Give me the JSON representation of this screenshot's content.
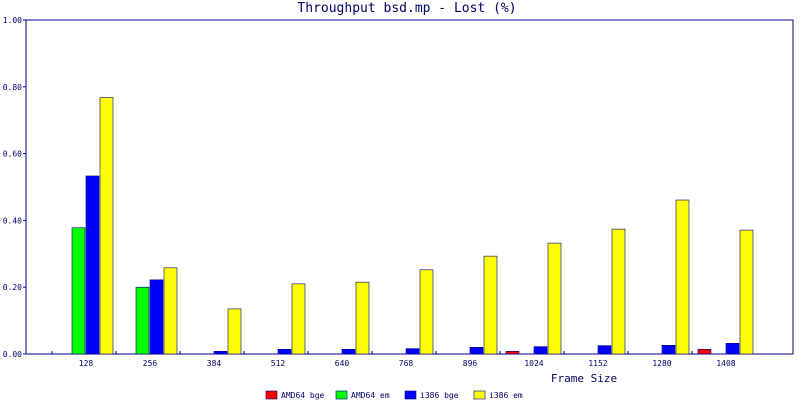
{
  "chart_data": {
    "type": "bar",
    "title": "Throughput bsd.mp - Lost (%)",
    "xlabel": "Frame Size",
    "ylabel": "",
    "ylim": [
      0,
      1
    ],
    "yticks": [
      "0.00",
      "0.20",
      "0.40",
      "0.60",
      "0.80",
      "1.00"
    ],
    "categories": [
      "128",
      "256",
      "384",
      "512",
      "640",
      "768",
      "896",
      "1024",
      "1152",
      "1280",
      "1408"
    ],
    "series": [
      {
        "name": "AMD64 bge",
        "color": "#ff0000",
        "values": [
          0,
          0,
          0,
          0,
          0,
          0,
          0,
          0.008,
          0,
          0,
          0.014
        ]
      },
      {
        "name": "AMD64 em",
        "color": "#00ff00",
        "values": [
          0.378,
          0.2,
          0,
          0,
          0,
          0,
          0,
          0,
          0,
          0,
          0
        ]
      },
      {
        "name": "i386 bge",
        "color": "#0000ff",
        "values": [
          0.533,
          0.222,
          0.008,
          0.014,
          0.014,
          0.016,
          0.02,
          0.022,
          0.025,
          0.026,
          0.032
        ]
      },
      {
        "name": "i386 em",
        "color": "#ffff00",
        "values": [
          0.768,
          0.258,
          0.135,
          0.21,
          0.215,
          0.252,
          0.293,
          0.332,
          0.374,
          0.461,
          0.371
        ]
      }
    ],
    "bar_outline_color": "#000080",
    "axis_color": "#000080",
    "grid": false,
    "legend_position": "bottom-center"
  }
}
